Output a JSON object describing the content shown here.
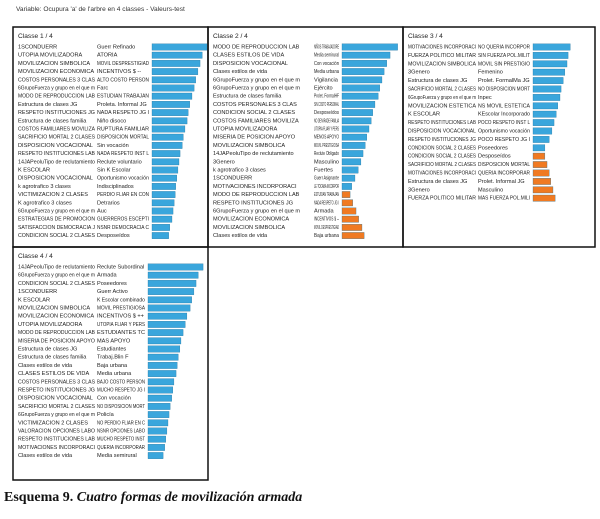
{
  "header": "Variable: Ocupura 'a' de l'arbre en  4 classes  -  Valeurs-test",
  "caption": {
    "number": "Esquema 9.",
    "title": "Cuatro formas de movilización armada"
  },
  "chart_data": [
    {
      "type": "bar",
      "title": "Classe  1 / 4",
      "color": "#3aa6dc",
      "negative_color": "#f07a22",
      "variables": [
        "1SCONDUERR",
        "UTOPIA MOVILIZADORA",
        "MOVILIZACION SIMBOLICA",
        "MOVILIZACION ECONOMICA",
        "COSTOS PERSONALES 3 CLAS",
        "6GrupoFuerza y grupo en el que m",
        "MODO DE REPRODUCCION LAB",
        "Estructura de clases JG",
        "RESPETO INSTITUCIONES JG",
        "Estructura de clases familia",
        "COSTOS FAMILIARES MOVILIZA",
        "SACRIFICIO MORTAL 2 CLASES",
        "DISPOSICION VOCACIONAL",
        "RESPETO INSTITUCIONES LAB",
        "14JAPeoluTipo de reclutamiento",
        "K ESCOLAR",
        "DISPOSICION VOCACIONAL",
        "k agrotrafico 3 clases",
        "VICTIMIZACION 2 CLASES",
        "K agrotrafico 3 clases",
        "6GrupoFuerza y grupo en el que m",
        "ESTRATEGIAS DE PROMOCION",
        "SATISFACCION DEMOCRACIA J",
        "CONDICION SOCIAL 2 CLASES"
      ],
      "categories": [
        "Guerr Refinado",
        "ATORIA",
        "MOVIL DESPRESTIGIAD",
        "INCENTIVOS $ --",
        "ALTO COSTO PERSON",
        "Farc",
        "ESTUDIAN TRABAJAN",
        "Proleta. Informal JG",
        "NADA RESPETO JG I",
        "Niño disoco",
        "RUPTURA FAMILIAR",
        "DISPOSICION MORTAL",
        "Sin vocación",
        "NADA RESPETO INST L",
        "Reclute voluntario",
        "Sin K Escolar",
        "Oportunismo vocación",
        "Indisciplinados",
        "PERDIO FLIAR EN CON",
        "Detrarios",
        "Auc",
        "GUERREROS ESCEPTI",
        "NSNR DEMOCRACIA C",
        "Desposeídos"
      ],
      "values": [
        10.2,
        9.3,
        8.9,
        8.5,
        8.1,
        7.8,
        7.4,
        7.0,
        6.7,
        6.5,
        6.1,
        5.8,
        5.6,
        5.2,
        5.0,
        4.8,
        4.6,
        4.4,
        4.3,
        4.1,
        3.9,
        3.7,
        3.3,
        3.1
      ]
    },
    {
      "type": "bar",
      "title": "Classe  2 / 4",
      "color": "#3aa6dc",
      "negative_color": "#f07a22",
      "variables": [
        "MODO DE REPRODUCCION LAB",
        "CLASES ESTILOS DE VIDA",
        "DISPOSICION VOCACIONAL",
        "Clases estilos de vida",
        "6GrupoFuerza y grupo en el que m",
        "6GrupoFuerza y grupo en el que m",
        "Estructura de clases familia",
        "COSTOS PERSONALES 3 CLAS",
        "CONDICION SOCIAL 2 CLASES",
        "COSTOS FAMILIARES MOVILIZA",
        "UTOPIA MOVILIZADORA",
        "MISERIA DE POSICION APOYO",
        "MOVILIZACION SIMBOLICA",
        "14JAPeoluTipo de reclutamiento",
        "3Genero",
        "k agrotrafico 3 clases",
        "1SCONDUERR",
        "MOTIVACIONES INCORPORACI",
        "MODO DE REPRODUCCION LAB",
        "RESPETO INSTITUCIONES JG",
        "6GrupoFuerza y grupo en el que m",
        "MOVILIZACION ECONOMICA",
        "MOVILIZACION SIMBOLICA",
        "Clases estilos de vida"
      ],
      "categories": [
        "NIÑOS TRABAJADORE",
        "Media semirural",
        "Con vocación",
        "Media urbana",
        "Vigilancia",
        "Ejército",
        "Prolet. FormalHF",
        "SIN COSTO PERSONAL",
        "Desposeídos",
        "NO DEIVIRADE FAMILIA",
        "UTOPIA FLIAR Y PERS",
        "MENOS APOYO",
        "MOVIL PRESTIGIOSA",
        "Reclute Obligado",
        "Masculino",
        "Fuertes",
        "Guerr Asignante",
        "LE TOCABA INCORPOR",
        "ESTUDIAN TRABAJAN",
        "NADA RESPETO JG I",
        "Armada",
        "INCENTIVOS $ --",
        "MOVIL DESPRESTIGIAD",
        "Baja urbana"
      ],
      "values": [
        10.3,
        8.9,
        8.3,
        7.8,
        7.4,
        7.0,
        6.7,
        6.1,
        5.7,
        5.4,
        5.0,
        4.6,
        4.3,
        3.9,
        3.5,
        3.0,
        2.4,
        1.8,
        -1.5,
        -2.0,
        -2.6,
        -3.1,
        -3.7,
        -4.1
      ]
    },
    {
      "type": "bar",
      "title": "Classe  3 / 4",
      "color": "#3aa6dc",
      "negative_color": "#f07a22",
      "variables": [
        "MOTIVACIONES INCORPORACI",
        "FUERZA POLITICO MILITAR",
        "MOVILIZACION SIMBOLICA",
        "3Genero",
        "Estructura de clases JG",
        "SACRIFICIO MORTAL 2 CLASES",
        "6GrupoFuerza y grupo en el que m",
        "MOVILIZACION ESTETICA",
        "K ESCOLAR",
        "RESPETO INSTITUCIONES LAB",
        "DISPOSICION VOCACIONAL",
        "RESPETO INSTITUCIONES JG",
        "CONDICION SOCIAL 2 CLASES",
        "CONDICION SOCIAL 2 CLASES",
        "SACRIFICIO MORTAL 2 CLASES",
        "MOTIVACIONES INCORPORACI",
        "Estructura de clases JG",
        "3Genero",
        "FUERZA POLITICO MILITAR"
      ],
      "categories": [
        "NO QUERIA INCORPOR",
        "SIN FUERZA POL.MILIT",
        "MOVIL SIN PRESTIGIO",
        "Femenino",
        "Prolet. FormalMa JG",
        "NO DISPOSICION MORT",
        "Inpec",
        "NS MOVIL ESTETICA",
        "KEscolar Incorporado",
        "POCO RESPETO INST L",
        "Oportunismo vocación",
        "POCO RESPETO JG I",
        "Poseedores",
        "Desposeídos",
        "DISPOSICION MORTAL",
        "QUERIA INCORPORAR",
        "Prolet. Informal JG",
        "Masculino",
        "MAS FUERZA POL.MILI"
      ],
      "values": [
        6.9,
        6.5,
        6.3,
        5.9,
        5.6,
        5.2,
        5.0,
        4.6,
        4.3,
        3.9,
        3.5,
        3.0,
        2.2,
        -2.2,
        -2.6,
        -3.0,
        -3.3,
        -3.7,
        -4.1
      ]
    },
    {
      "type": "bar",
      "title": "Classe  4 / 4",
      "color": "#3aa6dc",
      "negative_color": "#f07a22",
      "variables": [
        "14JAPeoluTipo de reclutamiento",
        "6GrupoFuerza y grupo en el que m",
        "CONDICION SOCIAL 2 CLASES",
        "1SCONDUERR",
        "K ESCOLAR",
        "MOVILIZACION SIMBOLICA",
        "MOVILIZACION ECONOMICA",
        "UTOPIA MOVILIZADORA",
        "MODO DE REPRODUCCION LAB",
        "MISERIA DE POSICION APOYO",
        "Estructura de clases JG",
        "Estructura de clases familia",
        "Clases estilos de vida",
        "CLASES ESTILOS DE VIDA",
        "COSTOS PERSONALES 3 CLAS",
        "RESPETO INSTITUCIONES JG",
        "DISPOSICION VOCACIONAL",
        "SACRIFICIO MORTAL 2 CLASES",
        "6GrupoFuerza y grupo en el que m",
        "VICTIMIZACION 2 CLASES",
        "VALORACION OPCIONES LABO",
        "RESPETO INSTITUCIONES LAB",
        "MOTIVACIONES INCORPORACI",
        "Clases estilos de vida"
      ],
      "categories": [
        "Reclute Subordinal",
        "Armada",
        "Poseedores",
        "Guerr Activo",
        "K Escolar combinado",
        "MOVIL PRESTIGIOSA",
        "INCENTIVOS $ ++",
        "UTOPIA FLIAR Y PERS",
        "ESTUDIANTES TC",
        "MAS APOYO",
        "Estudiantes",
        "Trabaj.Blin F",
        "Baja urbana",
        "Media urbana",
        "BAJO COSTO PERSON",
        "MUCHO RESPETO JG I",
        "Con vocación",
        "NO DISPOSICION MORT",
        "Policía",
        "NO PERDIO FLIAR EN C",
        "NSNR OPCIONES LABO",
        "MUCHO RESPETO INST",
        "QUERIA INCORPORAR",
        "Media semirural"
      ],
      "values": [
        10.2,
        9.3,
        8.9,
        8.5,
        8.1,
        7.8,
        7.2,
        6.9,
        6.5,
        6.1,
        5.9,
        5.6,
        5.4,
        5.2,
        4.8,
        4.6,
        4.4,
        4.1,
        3.9,
        3.7,
        3.5,
        3.3,
        3.1,
        2.8
      ]
    }
  ]
}
